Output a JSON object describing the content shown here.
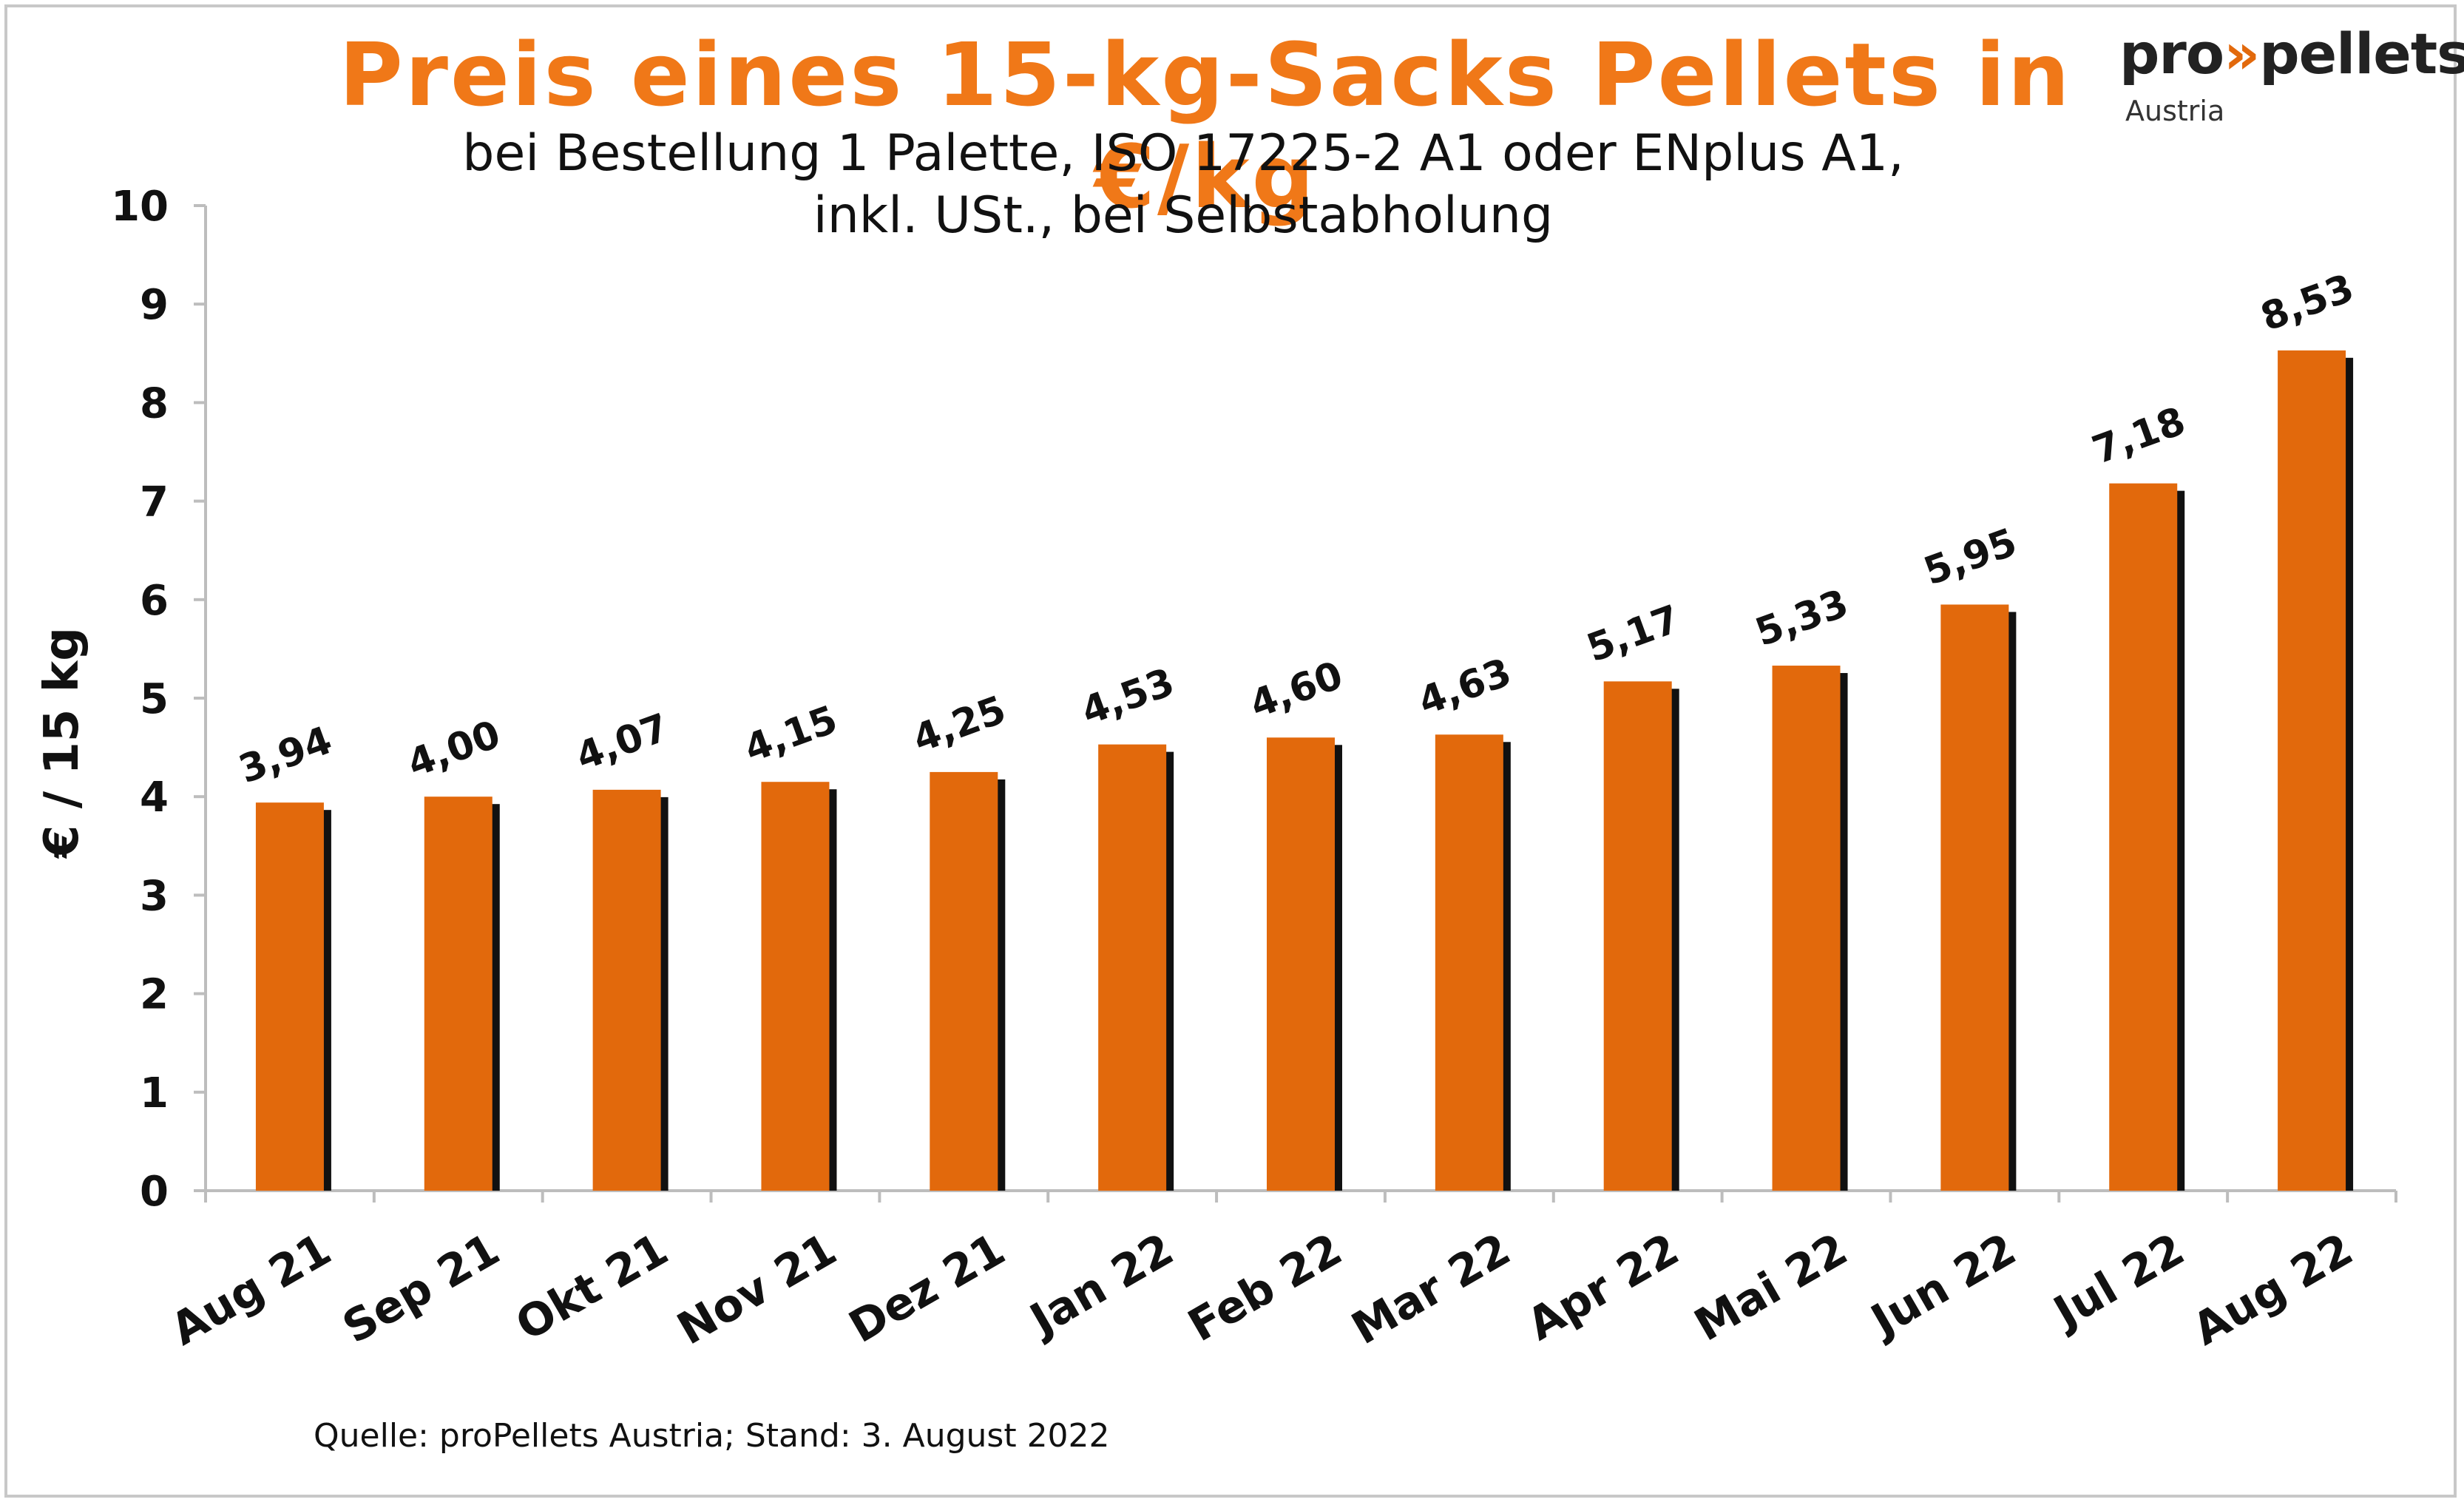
{
  "colors": {
    "bar": "#e2690c",
    "shadow": "#111111",
    "title": "#f07818",
    "logo_accent": "#e2690c",
    "axis": "#bdbdbd"
  },
  "logo": {
    "text_pro": "pro",
    "text_arrows": "»",
    "text_pellets": "pellets",
    "sub": "Austria"
  },
  "source_text": "Quelle: proPellets Austria; Stand: 3. August 2022",
  "chart_data": {
    "type": "bar",
    "title": "Preis eines 15-kg-Sacks Pellets in €/kg",
    "subtitle_line1": "bei Bestellung 1 Palette, ISO 17225-2 A1 oder ENplus A1,",
    "subtitle_line2": "inkl. USt., bei Selbstabholung",
    "xlabel": "",
    "ylabel": "€ / 15 kg",
    "ylim": [
      0,
      10
    ],
    "yticks": [
      "0",
      "1",
      "2",
      "3",
      "4",
      "5",
      "6",
      "7",
      "8",
      "9",
      "10"
    ],
    "grid": false,
    "legend": "none",
    "categories": [
      "Aug 21",
      "Sep 21",
      "Okt 21",
      "Nov 21",
      "Dez 21",
      "Jan 22",
      "Feb 22",
      "Mar 22",
      "Apr 22",
      "Mai 22",
      "Jun 22",
      "Jul 22",
      "Aug 22"
    ],
    "values": [
      3.94,
      4.0,
      4.07,
      4.15,
      4.25,
      4.53,
      4.6,
      4.63,
      5.17,
      5.33,
      5.95,
      7.18,
      8.53
    ],
    "value_labels": [
      "3,94",
      "4,00",
      "4,07",
      "4,15",
      "4,25",
      "4,53",
      "4,60",
      "4,63",
      "5,17",
      "5,33",
      "5,95",
      "7,18",
      "8,53"
    ]
  }
}
